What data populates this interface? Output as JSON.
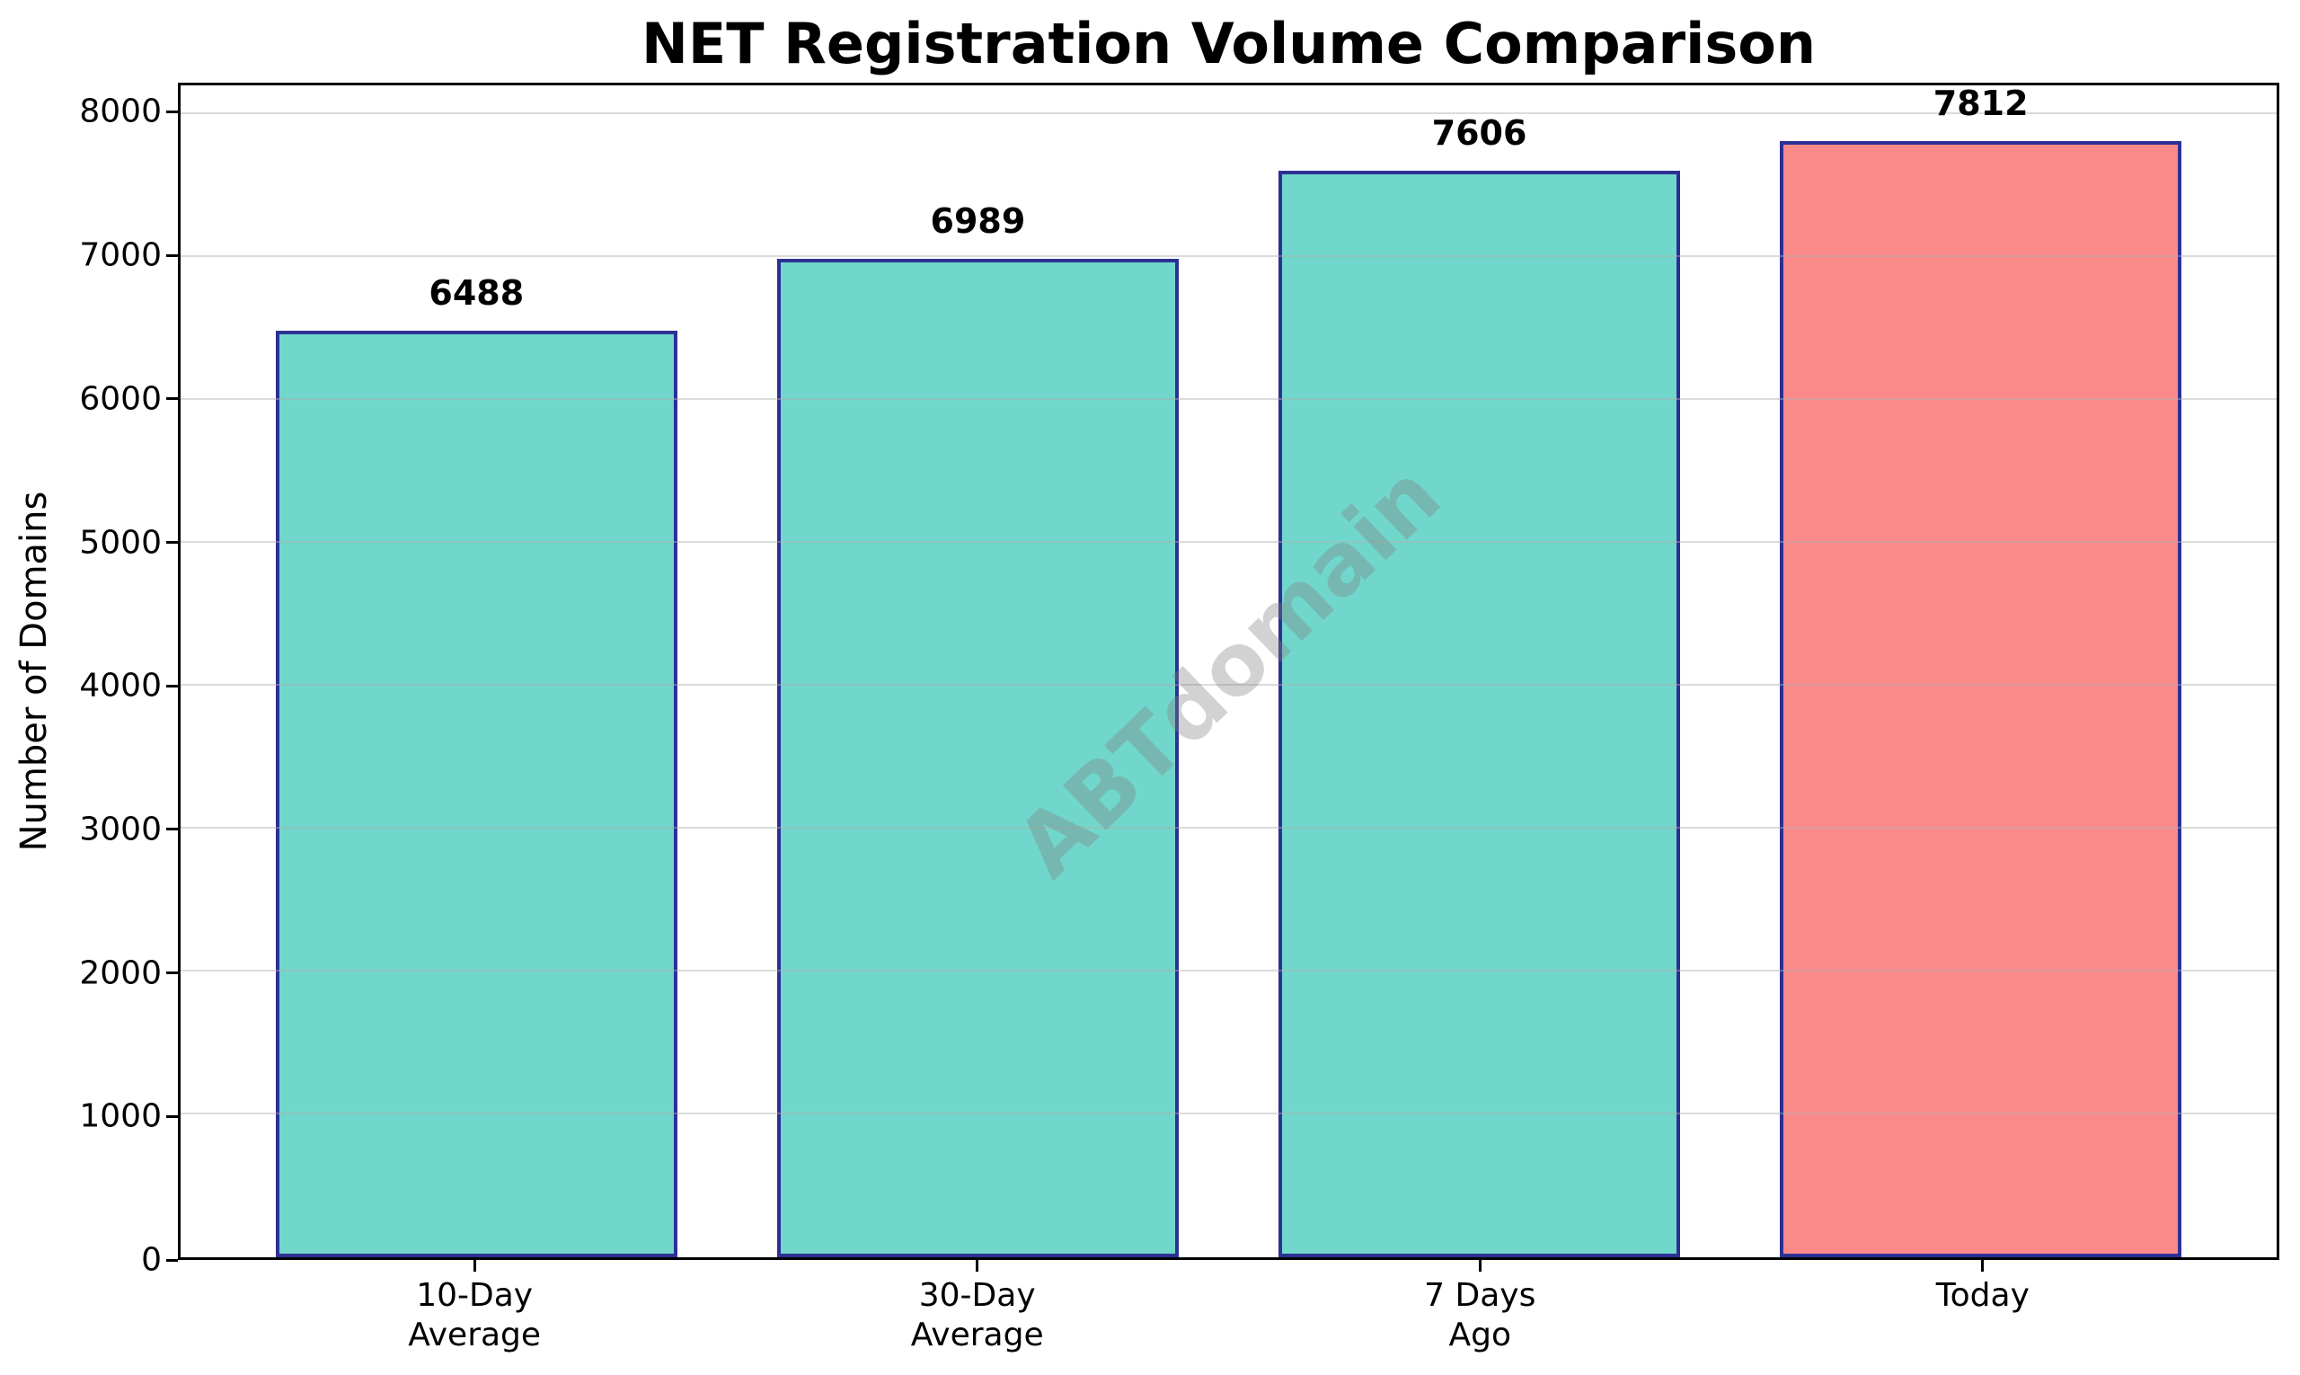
{
  "figure": {
    "background": "#FFFFFF"
  },
  "chart_data": {
    "type": "bar",
    "title": "NET Registration Volume Comparison",
    "ylabel": "Number of Domains",
    "xlabel": "",
    "categories": [
      "10-Day\nAverage",
      "30-Day\nAverage",
      "7 Days\nAgo",
      "Today"
    ],
    "values": [
      6488,
      6989,
      7606,
      7812
    ],
    "bar_colors": [
      "#71D7CC",
      "#71D7CC",
      "#71D7CC",
      "#FA8A8A"
    ],
    "bar_edge_color": "#2D3094",
    "ylim": [
      0,
      8203
    ],
    "yticks": [
      0,
      1000,
      2000,
      3000,
      4000,
      5000,
      6000,
      7000,
      8000
    ],
    "xlim": [
      -0.59,
      3.59
    ],
    "bar_width": 0.8,
    "grid": "horizontal-above-bars",
    "grid_color": "#B0B0B0",
    "legend": "none",
    "watermark": {
      "text": "ABTdomain",
      "color": "#808080",
      "opacity": 0.35,
      "rotation_deg": -44
    }
  }
}
